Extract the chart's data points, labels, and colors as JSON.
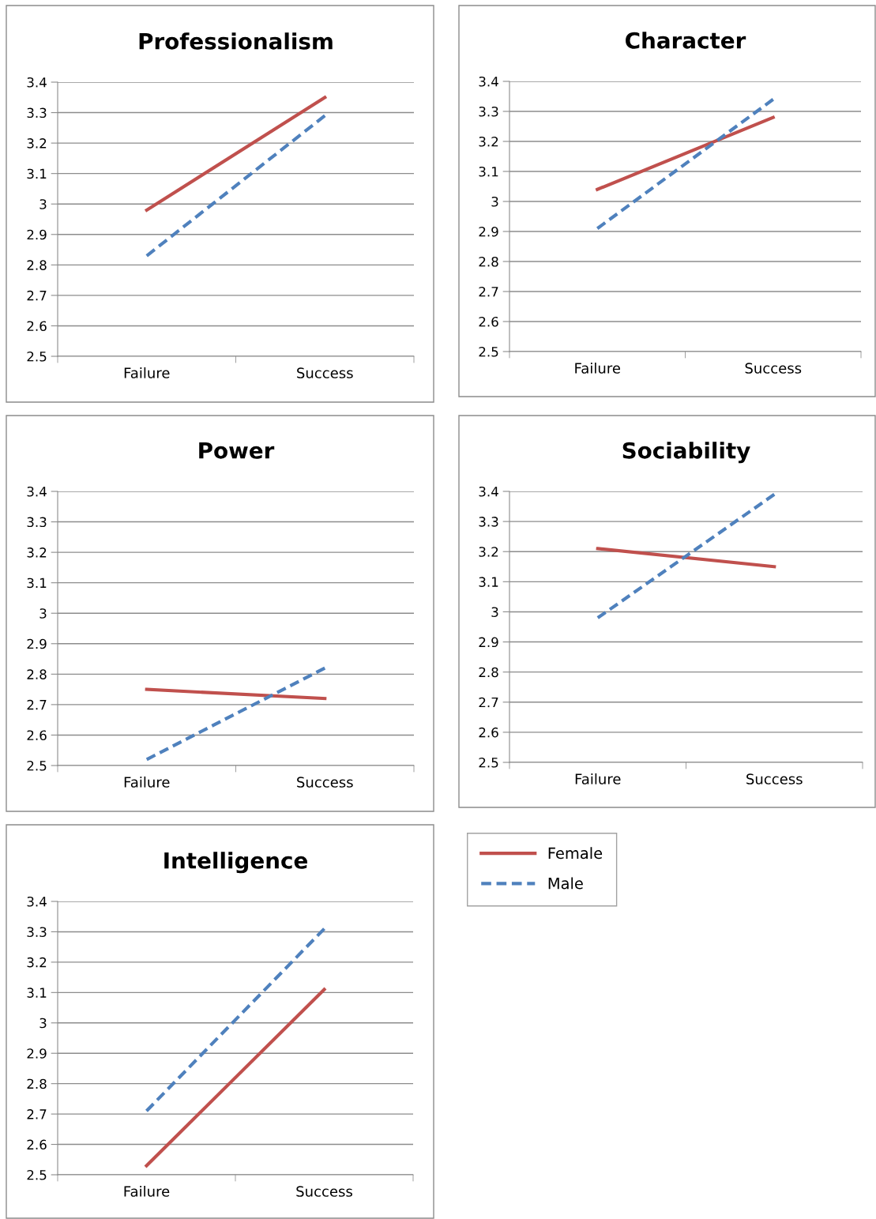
{
  "chart_data": [
    {
      "type": "line",
      "title": "Professionalism",
      "categories": [
        "Failure",
        "Success"
      ],
      "ylim": [
        2.5,
        3.4
      ],
      "yticks": [
        2.5,
        2.6,
        2.7,
        2.8,
        2.9,
        3,
        3.1,
        3.2,
        3.3,
        3.4
      ],
      "grid": "y",
      "legend": false,
      "series": [
        {
          "color": "#c0504d",
          "line_style": "solid",
          "values": [
            2.98,
            3.35
          ]
        },
        {
          "color": "#4f81bd",
          "line_style": "dashed",
          "values": [
            2.83,
            3.29
          ]
        }
      ]
    },
    {
      "type": "line",
      "title": "Character",
      "categories": [
        "Failure",
        "Success"
      ],
      "ylim": [
        2.5,
        3.4
      ],
      "yticks": [
        2.5,
        2.6,
        2.7,
        2.8,
        2.9,
        3,
        3.1,
        3.2,
        3.3,
        3.4
      ],
      "grid": "y",
      "legend": false,
      "series": [
        {
          "color": "#c0504d",
          "line_style": "solid",
          "values": [
            3.04,
            3.28
          ]
        },
        {
          "color": "#4f81bd",
          "line_style": "dashed",
          "values": [
            2.91,
            3.34
          ]
        }
      ]
    },
    {
      "type": "line",
      "title": "Power",
      "categories": [
        "Failure",
        "Success"
      ],
      "ylim": [
        2.5,
        3.4
      ],
      "yticks": [
        2.5,
        2.6,
        2.7,
        2.8,
        2.9,
        3,
        3.1,
        3.2,
        3.3,
        3.4
      ],
      "grid": "y",
      "legend": false,
      "series": [
        {
          "color": "#c0504d",
          "line_style": "solid",
          "values": [
            2.75,
            2.72
          ]
        },
        {
          "color": "#4f81bd",
          "line_style": "dashed",
          "values": [
            2.52,
            2.82
          ]
        }
      ]
    },
    {
      "type": "line",
      "title": "Sociability",
      "categories": [
        "Failure",
        "Success"
      ],
      "ylim": [
        2.5,
        3.4
      ],
      "yticks": [
        2.5,
        2.6,
        2.7,
        2.8,
        2.9,
        3,
        3.1,
        3.2,
        3.3,
        3.4
      ],
      "grid": "y",
      "legend": false,
      "series": [
        {
          "color": "#c0504d",
          "line_style": "solid",
          "values": [
            3.21,
            3.15
          ]
        },
        {
          "color": "#4f81bd",
          "line_style": "dashed",
          "values": [
            2.98,
            3.39
          ]
        }
      ]
    },
    {
      "type": "line",
      "title": "Intelligence",
      "categories": [
        "Failure",
        "Success"
      ],
      "ylim": [
        2.5,
        3.4
      ],
      "yticks": [
        2.5,
        2.6,
        2.7,
        2.8,
        2.9,
        3,
        3.1,
        3.2,
        3.3,
        3.4
      ],
      "grid": "y",
      "legend": "right",
      "series": [
        {
          "name": "Female",
          "color": "#c0504d",
          "line_style": "solid",
          "values": [
            2.53,
            3.11
          ]
        },
        {
          "name": "Male",
          "color": "#4f81bd",
          "line_style": "dashed",
          "values": [
            2.71,
            3.31
          ]
        }
      ]
    }
  ]
}
